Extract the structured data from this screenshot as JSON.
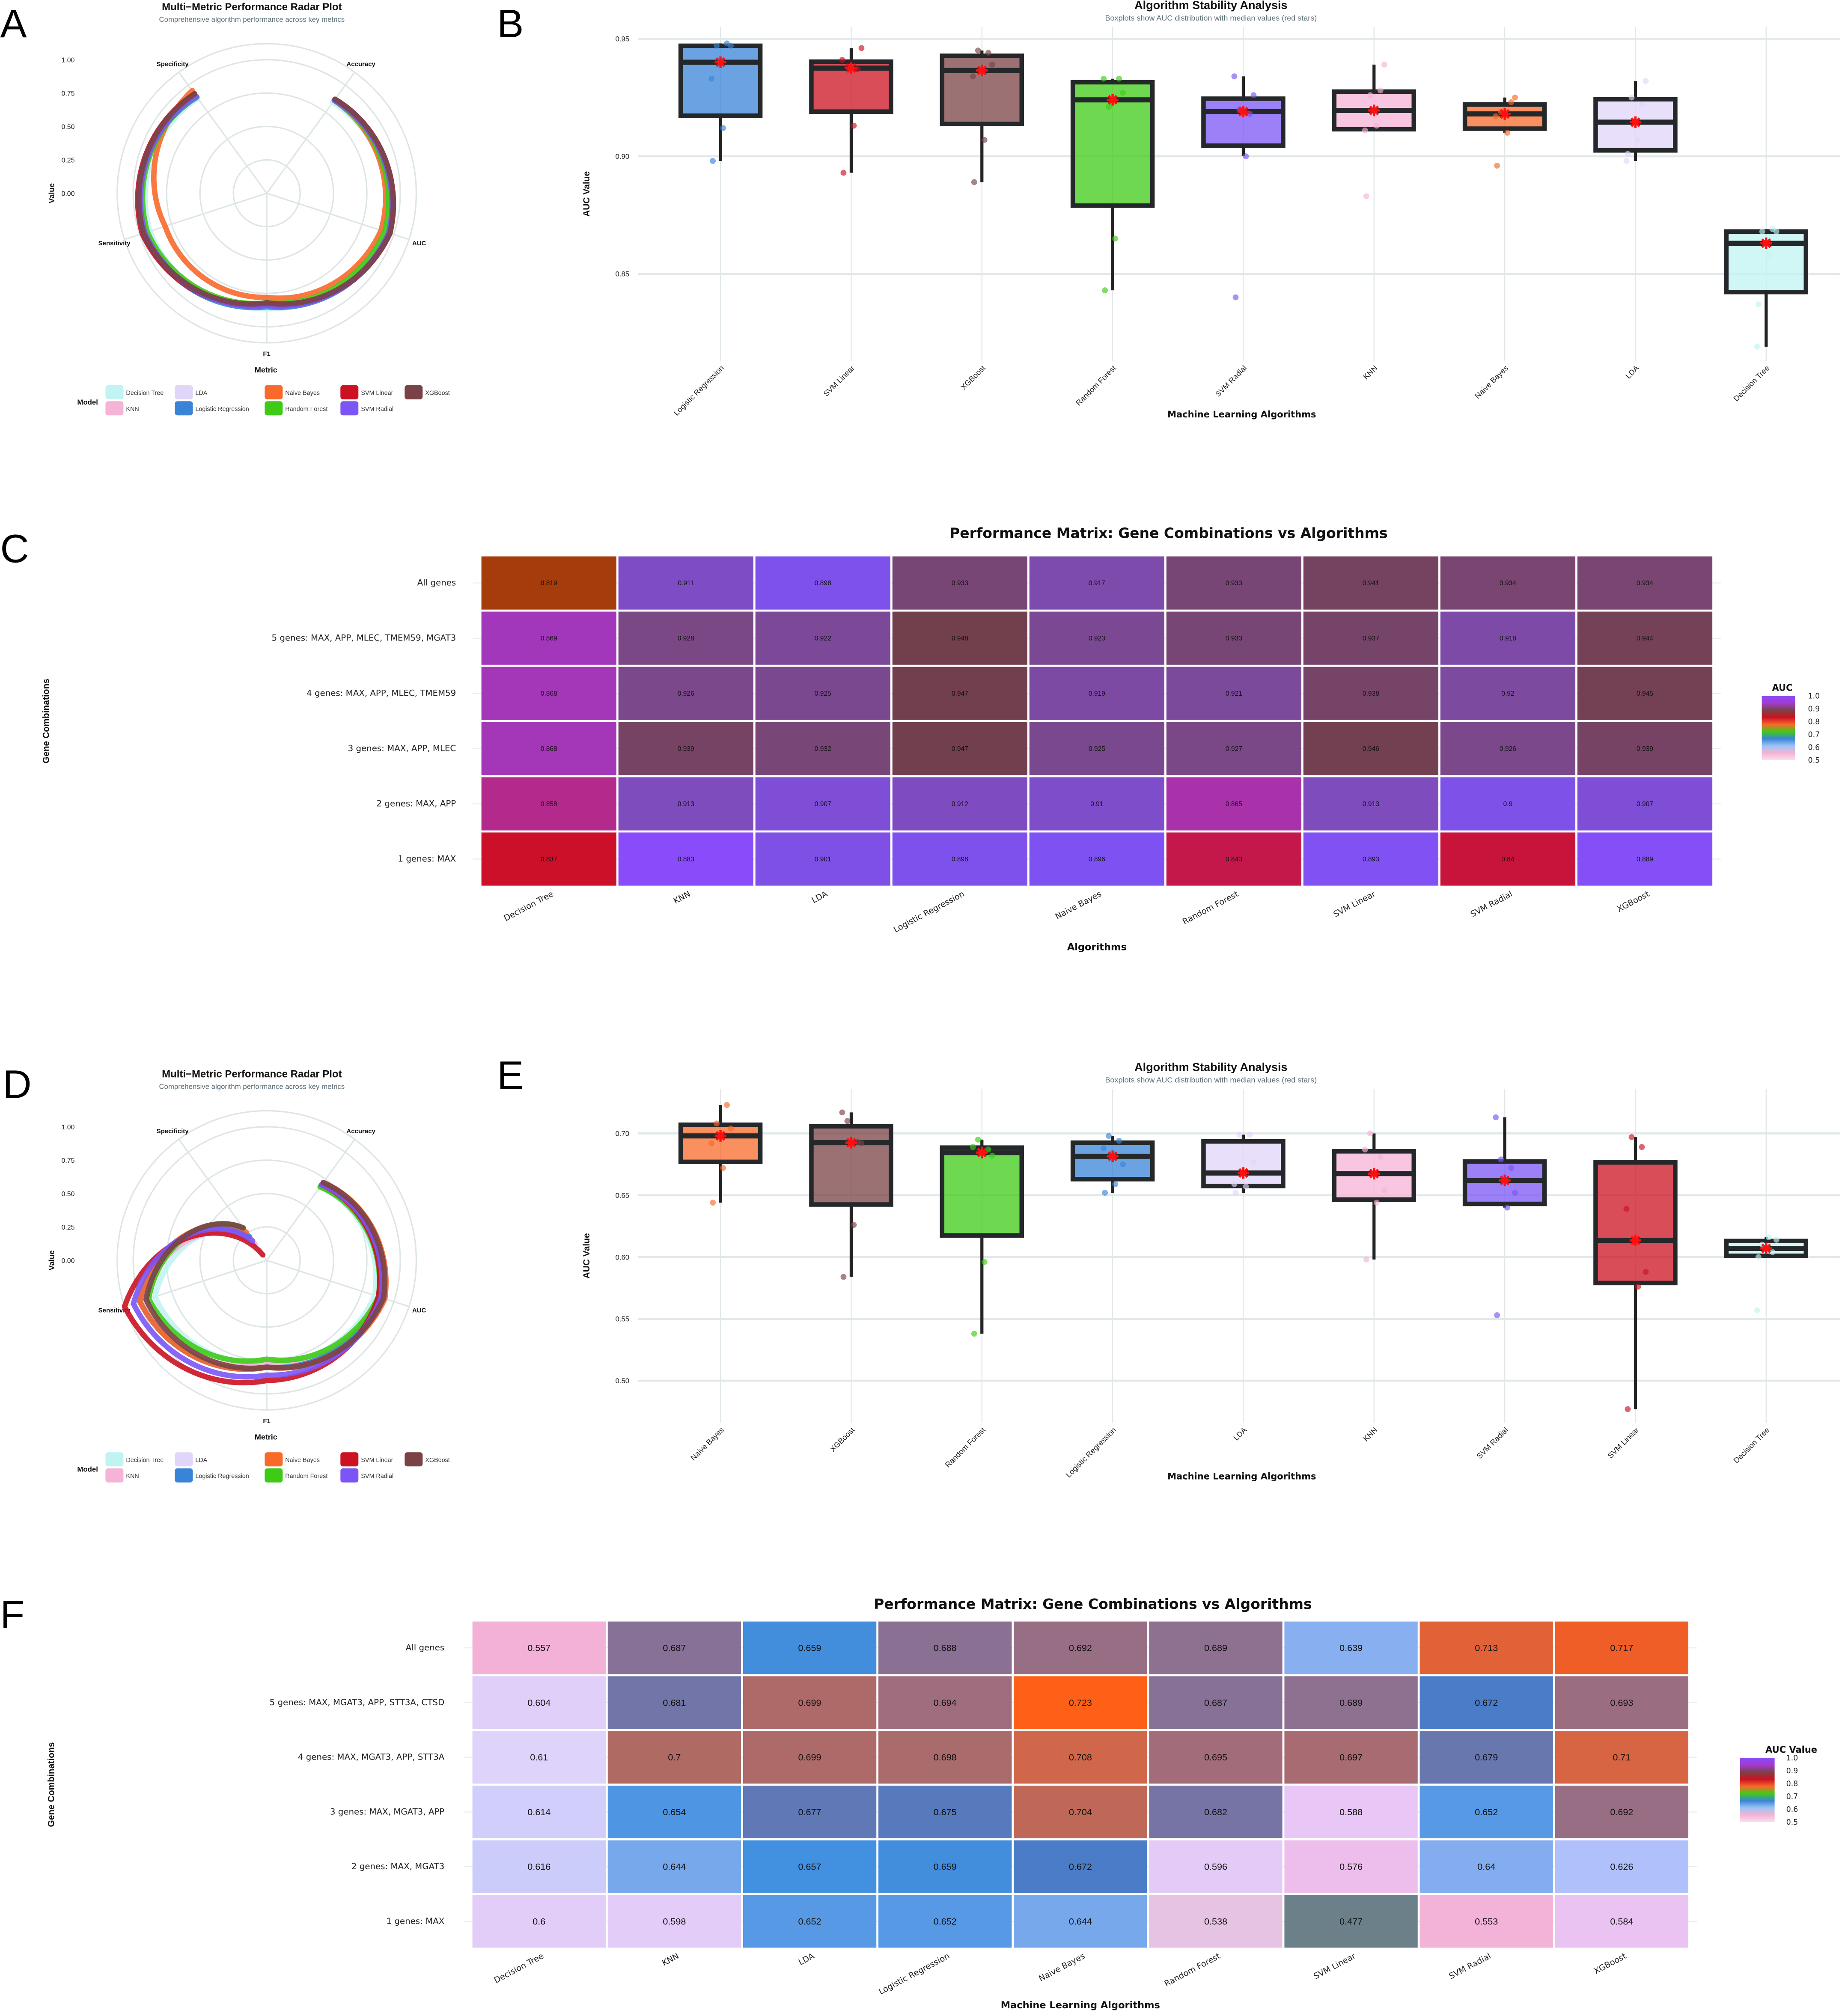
{
  "panel_labels": [
    "A",
    "B",
    "C",
    "D",
    "E",
    "F"
  ],
  "model_colors": {
    "Decision Tree": "#c2f3f3",
    "KNN": "#f5b3d5",
    "LDA": "#e0d6fa",
    "Logistic Regression": "#3a84d8",
    "Naive Bayes": "#f8692a",
    "Random Forest": "#3ecb16",
    "SVM Linear": "#cc1122",
    "SVM Radial": "#7b55f6",
    "XGBoost": "#7a4246"
  },
  "chart_data": [
    {
      "type": "radar",
      "title": "Multi−Metric Performance Radar Plot",
      "subtitle": "Comprehensive algorithm performance across key metrics",
      "ylabel": "Value",
      "xlabel": "Metric",
      "legend_title": "Model",
      "metrics": [
        "Accuracy",
        "AUC",
        "F1",
        "Sensitivity",
        "Specificity"
      ],
      "r_ticks": [
        1.0,
        0.75,
        0.5,
        0.25,
        0.0
      ],
      "r_tick_labels": [
        "1.00",
        "0.75",
        "0.50",
        "0.25",
        "0.00"
      ],
      "models": [
        {
          "name": "Decision Tree",
          "values": [
            0.84,
            0.93,
            0.86,
            0.92,
            0.88
          ]
        },
        {
          "name": "KNN",
          "values": [
            0.86,
            0.95,
            0.84,
            0.95,
            0.9
          ]
        },
        {
          "name": "LDA",
          "values": [
            0.86,
            0.95,
            0.84,
            0.95,
            0.9
          ]
        },
        {
          "name": "Logistic Regression",
          "values": [
            0.86,
            0.96,
            0.85,
            0.97,
            0.89
          ]
        },
        {
          "name": "Naive Bayes",
          "values": [
            0.86,
            0.9,
            0.78,
            0.8,
            0.95
          ]
        },
        {
          "name": "Random Forest",
          "values": [
            0.86,
            0.93,
            0.82,
            0.94,
            0.9
          ]
        },
        {
          "name": "SVM Linear",
          "values": [
            0.87,
            0.97,
            0.83,
            0.98,
            0.92
          ]
        },
        {
          "name": "SVM Radial",
          "values": [
            0.86,
            0.96,
            0.84,
            0.96,
            0.9
          ]
        },
        {
          "name": "XGBoost",
          "values": [
            0.87,
            0.97,
            0.82,
            0.97,
            0.92
          ]
        }
      ]
    },
    {
      "type": "box",
      "title": "Algorithm Stability Analysis",
      "subtitle": "Boxplots show AUC distribution with median values (red stars)",
      "ylabel": "AUC Value",
      "xlabel": "Machine Learning Algorithms",
      "ylim": [
        0.813,
        0.955
      ],
      "yticks": [
        0.85,
        0.9,
        0.95
      ],
      "ytick_labels": [
        "0.85",
        "0.90",
        "0.95"
      ],
      "series": [
        {
          "name": "Logistic Regression",
          "values": [
            0.933,
            0.948,
            0.947,
            0.947,
            0.912,
            0.898
          ]
        },
        {
          "name": "SVM Linear",
          "values": [
            0.941,
            0.937,
            0.938,
            0.946,
            0.913,
            0.893
          ]
        },
        {
          "name": "XGBoost",
          "values": [
            0.934,
            0.944,
            0.945,
            0.939,
            0.907,
            0.889
          ]
        },
        {
          "name": "Random Forest",
          "values": [
            0.933,
            0.933,
            0.921,
            0.927,
            0.865,
            0.843
          ]
        },
        {
          "name": "SVM Radial",
          "values": [
            0.934,
            0.918,
            0.92,
            0.926,
            0.9,
            0.84
          ]
        },
        {
          "name": "KNN",
          "values": [
            0.911,
            0.928,
            0.926,
            0.939,
            0.913,
            0.883
          ]
        },
        {
          "name": "Naive Bayes",
          "values": [
            0.917,
            0.923,
            0.919,
            0.925,
            0.91,
            0.896
          ]
        },
        {
          "name": "LDA",
          "values": [
            0.898,
            0.922,
            0.925,
            0.932,
            0.907,
            0.901
          ]
        },
        {
          "name": "Decision Tree",
          "values": [
            0.819,
            0.869,
            0.868,
            0.868,
            0.858,
            0.837
          ]
        }
      ]
    },
    {
      "type": "heatmap",
      "title": "Performance Matrix: Gene Combinations vs Algorithms",
      "xlabel": "Algorithms",
      "ylabel": "Gene Combinations",
      "legend_title": "AUC",
      "legend_labels": [
        "1.0",
        "0.9",
        "0.8",
        "0.7",
        "0.6",
        "0.5"
      ],
      "legend_colors": [
        "#8a4cfa",
        "#a23bd0",
        "#7a4246",
        "#cc1122",
        "#f8692a",
        "#3ecb16",
        "#3a84d8",
        "#9cc4f4",
        "#f5b3d5",
        "#f7e0ee"
      ],
      "columns": [
        "Decision Tree",
        "KNN",
        "LDA",
        "Logistic Regression",
        "Naive Bayes",
        "Random Forest",
        "SVM Linear",
        "SVM Radial",
        "XGBoost"
      ],
      "rows": [
        "All genes",
        "5 genes: MAX, APP, MLEC, TMEM59, MGAT3",
        "4 genes: MAX, APP, MLEC, TMEM59",
        "3 genes: MAX, APP, MLEC",
        "2 genes: MAX, APP",
        "1 genes: MAX"
      ],
      "values": [
        [
          0.819,
          0.911,
          0.898,
          0.933,
          0.917,
          0.933,
          0.941,
          0.934,
          0.934
        ],
        [
          0.869,
          0.928,
          0.922,
          0.948,
          0.923,
          0.933,
          0.937,
          0.918,
          0.944
        ],
        [
          0.868,
          0.926,
          0.925,
          0.947,
          0.919,
          0.921,
          0.938,
          0.92,
          0.945
        ],
        [
          0.868,
          0.939,
          0.932,
          0.947,
          0.925,
          0.927,
          0.946,
          0.926,
          0.939
        ],
        [
          0.858,
          0.913,
          0.907,
          0.912,
          0.91,
          0.865,
          0.913,
          0.9,
          0.907
        ],
        [
          0.837,
          0.883,
          0.901,
          0.898,
          0.896,
          0.843,
          0.893,
          0.84,
          0.889
        ]
      ],
      "value_labels": [
        [
          "0.819",
          "0.911",
          "0.898",
          "0.933",
          "0.917",
          "0.933",
          "0.941",
          "0.934",
          "0.934"
        ],
        [
          "0.869",
          "0.928",
          "0.922",
          "0.948",
          "0.923",
          "0.933",
          "0.937",
          "0.918",
          "0.944"
        ],
        [
          "0.868",
          "0.926",
          "0.925",
          "0.947",
          "0.919",
          "0.921",
          "0.938",
          "0.92",
          "0.945"
        ],
        [
          "0.868",
          "0.939",
          "0.932",
          "0.947",
          "0.925",
          "0.927",
          "0.946",
          "0.926",
          "0.939"
        ],
        [
          "0.858",
          "0.913",
          "0.907",
          "0.912",
          "0.91",
          "0.865",
          "0.913",
          "0.9",
          "0.907"
        ],
        [
          "0.837",
          "0.883",
          "0.901",
          "0.898",
          "0.896",
          "0.843",
          "0.893",
          "0.84",
          "0.889"
        ]
      ],
      "color_scale": [
        [
          0.819,
          "#a63c0c"
        ],
        [
          0.837,
          "#cc102a"
        ],
        [
          0.843,
          "#c4184a"
        ],
        [
          0.858,
          "#b42a8c"
        ],
        [
          0.868,
          "#a436b8"
        ],
        [
          0.883,
          "#8a4cfa"
        ],
        [
          0.896,
          "#7e52f2"
        ],
        [
          0.907,
          "#7e4ed6"
        ],
        [
          0.913,
          "#7e4cbc"
        ],
        [
          0.92,
          "#7c4a9e"
        ],
        [
          0.933,
          "#784674"
        ],
        [
          0.948,
          "#723f4c"
        ]
      ]
    },
    {
      "type": "radar",
      "title": "Multi−Metric Performance Radar Plot",
      "subtitle": "Comprehensive algorithm performance across key metrics",
      "ylabel": "Value",
      "xlabel": "Metric",
      "legend_title": "Model",
      "metrics": [
        "Accuracy",
        "AUC",
        "F1",
        "Sensitivity",
        "Specificity"
      ],
      "r_ticks": [
        1.0,
        0.75,
        0.5,
        0.25,
        0.0
      ],
      "r_tick_labels": [
        "1.00",
        "0.75",
        "0.50",
        "0.25",
        "0.00"
      ],
      "models": [
        {
          "name": "Decision Tree",
          "values": [
            0.68,
            0.85,
            0.76,
            0.88,
            0.22
          ]
        },
        {
          "name": "KNN",
          "values": [
            0.69,
            0.88,
            0.78,
            0.98,
            0.15
          ]
        },
        {
          "name": "LDA",
          "values": [
            0.69,
            0.89,
            0.8,
            1.0,
            0.2
          ]
        },
        {
          "name": "Logistic Regression",
          "values": [
            0.69,
            0.89,
            0.8,
            1.0,
            0.22
          ]
        },
        {
          "name": "Naive Bayes",
          "values": [
            0.72,
            0.93,
            0.8,
            1.0,
            0.26
          ]
        },
        {
          "name": "Random Forest",
          "values": [
            0.68,
            0.88,
            0.74,
            0.93,
            0.3
          ]
        },
        {
          "name": "SVM Linear",
          "values": [
            0.7,
            0.88,
            0.9,
            1.12,
            0.05
          ]
        },
        {
          "name": "SVM Radial",
          "values": [
            0.7,
            0.9,
            0.86,
            1.05,
            0.18
          ]
        },
        {
          "name": "XGBoost",
          "values": [
            0.72,
            0.92,
            0.8,
            0.95,
            0.3
          ]
        }
      ]
    },
    {
      "type": "box",
      "title": "Algorithm Stability Analysis",
      "subtitle": "Boxplots show AUC distribution with median values (red stars)",
      "ylabel": "AUC Value",
      "xlabel": "Machine Learning Algorithms",
      "ylim": [
        0.466,
        0.736
      ],
      "yticks": [
        0.5,
        0.55,
        0.6,
        0.65,
        0.7
      ],
      "ytick_labels": [
        "0.50",
        "0.55",
        "0.60",
        "0.65",
        "0.70"
      ],
      "series": [
        {
          "name": "Naive Bayes",
          "values": [
            0.692,
            0.723,
            0.708,
            0.704,
            0.672,
            0.644
          ]
        },
        {
          "name": "XGBoost",
          "values": [
            0.717,
            0.693,
            0.71,
            0.692,
            0.626,
            0.584
          ]
        },
        {
          "name": "Random Forest",
          "values": [
            0.689,
            0.687,
            0.695,
            0.682,
            0.596,
            0.538
          ]
        },
        {
          "name": "Logistic Regression",
          "values": [
            0.688,
            0.694,
            0.698,
            0.675,
            0.659,
            0.652
          ]
        },
        {
          "name": "LDA",
          "values": [
            0.659,
            0.699,
            0.699,
            0.677,
            0.657,
            0.652
          ]
        },
        {
          "name": "KNN",
          "values": [
            0.687,
            0.681,
            0.7,
            0.654,
            0.644,
            0.598
          ]
        },
        {
          "name": "SVM Radial",
          "values": [
            0.713,
            0.672,
            0.679,
            0.652,
            0.64,
            0.553
          ]
        },
        {
          "name": "SVM Linear",
          "values": [
            0.639,
            0.689,
            0.697,
            0.588,
            0.576,
            0.477
          ]
        },
        {
          "name": "Decision Tree",
          "values": [
            0.557,
            0.604,
            0.61,
            0.614,
            0.616,
            0.6
          ]
        }
      ]
    },
    {
      "type": "heatmap",
      "title": "Performance Matrix: Gene Combinations vs Algorithms",
      "xlabel": "Machine Learning Algorithms",
      "ylabel": "Gene Combinations",
      "legend_title": "AUC Value",
      "legend_labels": [
        "1.0",
        "0.9",
        "0.8",
        "0.7",
        "0.6",
        "0.5"
      ],
      "legend_colors": [
        "#8a4cfa",
        "#a23bd0",
        "#7a4246",
        "#cc1122",
        "#f8692a",
        "#3ecb16",
        "#3a84d8",
        "#9cc4f4",
        "#f5b3d5",
        "#f7e0ee"
      ],
      "columns": [
        "Decision Tree",
        "KNN",
        "LDA",
        "Logistic Regression",
        "Naive Bayes",
        "Random Forest",
        "SVM Linear",
        "SVM Radial",
        "XGBoost"
      ],
      "rows": [
        "All genes",
        "5 genes: MAX, MGAT3, APP, STT3A, CTSD",
        "4 genes: MAX, MGAT3, APP, STT3A",
        "3 genes: MAX, MGAT3, APP",
        "2 genes: MAX, MGAT3",
        "1 genes: MAX"
      ],
      "values": [
        [
          0.557,
          0.687,
          0.659,
          0.688,
          0.692,
          0.689,
          0.639,
          0.713,
          0.717
        ],
        [
          0.604,
          0.681,
          0.699,
          0.694,
          0.723,
          0.687,
          0.689,
          0.672,
          0.693
        ],
        [
          0.61,
          0.7,
          0.699,
          0.698,
          0.708,
          0.695,
          0.697,
          0.679,
          0.71
        ],
        [
          0.614,
          0.654,
          0.677,
          0.675,
          0.704,
          0.682,
          0.588,
          0.652,
          0.692
        ],
        [
          0.616,
          0.644,
          0.657,
          0.659,
          0.672,
          0.596,
          0.576,
          0.64,
          0.626
        ],
        [
          0.6,
          0.598,
          0.652,
          0.652,
          0.644,
          0.538,
          0.477,
          0.553,
          0.584
        ]
      ],
      "value_labels": [
        [
          "0.557",
          "0.687",
          "0.659",
          "0.688",
          "0.692",
          "0.689",
          "0.639",
          "0.713",
          "0.717"
        ],
        [
          "0.604",
          "0.681",
          "0.699",
          "0.694",
          "0.723",
          "0.687",
          "0.689",
          "0.672",
          "0.693"
        ],
        [
          "0.61",
          "0.7",
          "0.699",
          "0.698",
          "0.708",
          "0.695",
          "0.697",
          "0.679",
          "0.71"
        ],
        [
          "0.614",
          "0.654",
          "0.677",
          "0.675",
          "0.704",
          "0.682",
          "0.588",
          "0.652",
          "0.692"
        ],
        [
          "0.616",
          "0.644",
          "0.657",
          "0.659",
          "0.672",
          "0.596",
          "0.576",
          "0.64",
          "0.626"
        ],
        [
          "0.6",
          "0.598",
          "0.652",
          "0.652",
          "0.644",
          "0.538",
          "0.477",
          "0.553",
          "0.584"
        ]
      ],
      "color_scale": [
        [
          0.477,
          "#6b8088"
        ],
        [
          0.538,
          "#e6c3e2"
        ],
        [
          0.555,
          "#f5b0d6"
        ],
        [
          0.585,
          "#eac4f4"
        ],
        [
          0.61,
          "#ddd3fb"
        ],
        [
          0.626,
          "#b0c0fa"
        ],
        [
          0.644,
          "#78a8ec"
        ],
        [
          0.657,
          "#4290e0"
        ],
        [
          0.672,
          "#4a7cc8"
        ],
        [
          0.681,
          "#7275a8"
        ],
        [
          0.689,
          "#8e7090"
        ],
        [
          0.695,
          "#a26c7a"
        ],
        [
          0.7,
          "#b06a64"
        ],
        [
          0.708,
          "#d0664a"
        ],
        [
          0.717,
          "#f05e28"
        ],
        [
          0.723,
          "#ff6018"
        ]
      ]
    }
  ]
}
